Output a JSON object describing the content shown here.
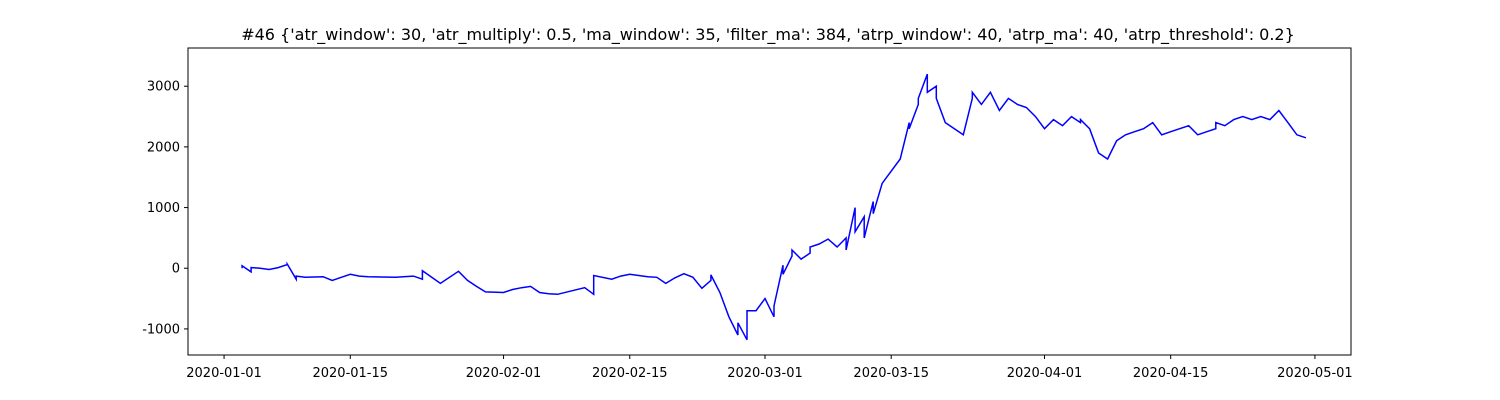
{
  "chart_data": {
    "type": "line",
    "title": "#46 {'atr_window': 30, 'atr_multiply': 0.5, 'ma_window': 35, 'filter_ma': 384, 'atrp_window': 40, 'atrp_ma': 40, 'atrp_threshold': 0.2}",
    "xlabel": "",
    "ylabel": "",
    "grid": false,
    "line_color": "#0000ff",
    "xlim": [
      "2019-12-28",
      "2020-05-05"
    ],
    "ylim": [
      -1430,
      3630
    ],
    "x_ticks": [
      "2020-01-01",
      "2020-01-15",
      "2020-02-01",
      "2020-02-15",
      "2020-03-01",
      "2020-03-15",
      "2020-04-01",
      "2020-04-15",
      "2020-05-01"
    ],
    "y_ticks": [
      -1000,
      0,
      1000,
      2000,
      3000
    ],
    "series": [
      {
        "x": [
          "2020-01-03",
          "2020-01-03",
          "2020-01-04",
          "2020-01-04",
          "2020-01-05",
          "2020-01-06",
          "2020-01-07",
          "2020-01-08",
          "2020-01-08",
          "2020-01-09",
          "2020-01-09",
          "2020-01-10",
          "2020-01-12",
          "2020-01-13",
          "2020-01-14",
          "2020-01-15",
          "2020-01-16",
          "2020-01-17",
          "2020-01-20",
          "2020-01-22",
          "2020-01-23",
          "2020-01-23",
          "2020-01-25",
          "2020-01-27",
          "2020-01-28",
          "2020-01-29",
          "2020-01-30",
          "2020-02-01",
          "2020-02-02",
          "2020-02-03",
          "2020-02-04",
          "2020-02-05",
          "2020-02-06",
          "2020-02-07",
          "2020-02-10",
          "2020-02-11",
          "2020-02-11",
          "2020-02-13",
          "2020-02-14",
          "2020-02-15",
          "2020-02-17",
          "2020-02-18",
          "2020-02-19",
          "2020-02-20",
          "2020-02-21",
          "2020-02-22",
          "2020-02-23",
          "2020-02-24",
          "2020-02-24",
          "2020-02-25",
          "2020-02-26",
          "2020-02-27",
          "2020-02-27",
          "2020-02-28",
          "2020-02-28",
          "2020-02-29",
          "2020-03-01",
          "2020-03-02",
          "2020-03-02",
          "2020-03-03",
          "2020-03-03",
          "2020-03-04",
          "2020-03-04",
          "2020-03-05",
          "2020-03-06",
          "2020-03-06",
          "2020-03-07",
          "2020-03-08",
          "2020-03-09",
          "2020-03-10",
          "2020-03-10",
          "2020-03-11",
          "2020-03-11",
          "2020-03-12",
          "2020-03-12",
          "2020-03-13",
          "2020-03-13",
          "2020-03-14",
          "2020-03-16",
          "2020-03-17",
          "2020-03-17",
          "2020-03-18",
          "2020-03-18",
          "2020-03-19",
          "2020-03-19",
          "2020-03-20",
          "2020-03-20",
          "2020-03-21",
          "2020-03-23",
          "2020-03-24",
          "2020-03-24",
          "2020-03-25",
          "2020-03-26",
          "2020-03-27",
          "2020-03-28",
          "2020-03-29",
          "2020-03-30",
          "2020-03-31",
          "2020-04-01",
          "2020-04-02",
          "2020-04-03",
          "2020-04-04",
          "2020-04-05",
          "2020-04-05",
          "2020-04-06",
          "2020-04-07",
          "2020-04-08",
          "2020-04-09",
          "2020-04-10",
          "2020-04-11",
          "2020-04-12",
          "2020-04-13",
          "2020-04-14",
          "2020-04-15",
          "2020-04-16",
          "2020-04-17",
          "2020-04-18",
          "2020-04-19",
          "2020-04-20",
          "2020-04-20",
          "2020-04-21",
          "2020-04-22",
          "2020-04-23",
          "2020-04-24",
          "2020-04-25",
          "2020-04-26",
          "2020-04-27",
          "2020-04-28",
          "2020-04-29",
          "2020-04-30"
        ],
        "values": [
          0,
          40,
          -60,
          10,
          0,
          -20,
          10,
          60,
          70,
          -180,
          -130,
          -150,
          -140,
          -200,
          -150,
          -100,
          -130,
          -140,
          -150,
          -130,
          -180,
          -40,
          -250,
          -50,
          -200,
          -300,
          -390,
          -400,
          -350,
          -320,
          -300,
          -400,
          -420,
          -430,
          -320,
          -430,
          -120,
          -180,
          -130,
          -100,
          -140,
          -150,
          -250,
          -160,
          -90,
          -150,
          -330,
          -200,
          -110,
          -400,
          -800,
          -1100,
          -900,
          -1180,
          -700,
          -700,
          -500,
          -800,
          -620,
          50,
          -100,
          200,
          300,
          150,
          250,
          350,
          400,
          480,
          350,
          500,
          300,
          1000,
          600,
          850,
          500,
          1100,
          900,
          1400,
          1800,
          2400,
          2300,
          2700,
          2800,
          3200,
          2900,
          3000,
          2800,
          2400,
          2200,
          2800,
          2900,
          2700,
          2900,
          2600,
          2800,
          2700,
          2650,
          2500,
          2300,
          2450,
          2350,
          2500,
          2400,
          2450,
          2300,
          1900,
          1800,
          2100,
          2200,
          2250,
          2300,
          2400,
          2200,
          2250,
          2300,
          2350,
          2200,
          2250,
          2300,
          2400,
          2350,
          2450,
          2500,
          2450,
          2500,
          2450,
          2600,
          2400,
          2200,
          2150
        ]
      }
    ]
  }
}
